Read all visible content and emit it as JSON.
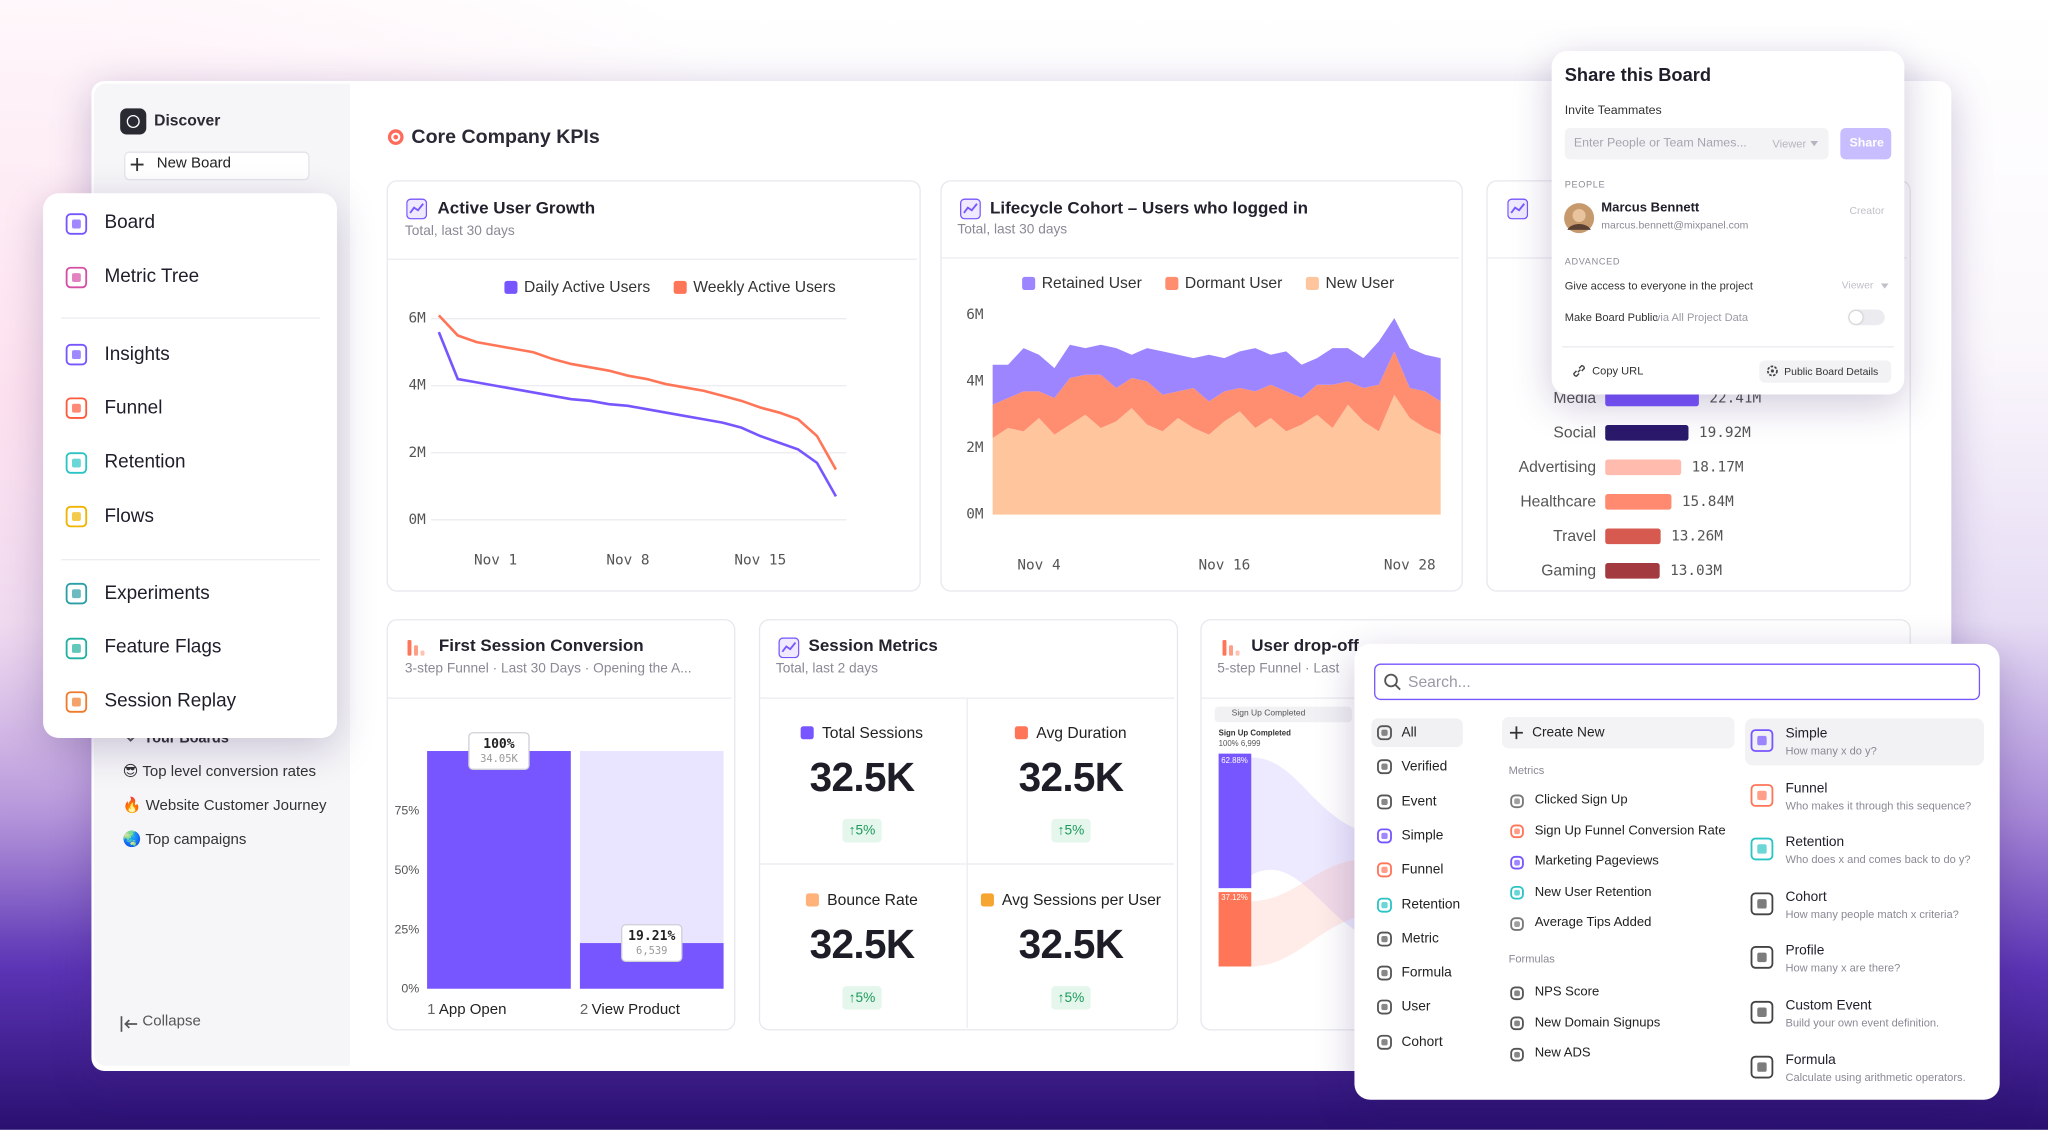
{
  "sidebar": {
    "discover": "Discover",
    "new_board": "New Board",
    "your_boards": "Your Boards",
    "boards": [
      "😎 Top level conversion rates",
      "🔥 Website Customer Journey",
      "🌏 Top campaigns"
    ],
    "collapse": "Collapse"
  },
  "menu": {
    "groups": [
      [
        "Board",
        "Metric Tree"
      ],
      [
        "Insights",
        "Funnel",
        "Retention",
        "Flows"
      ],
      [
        "Experiments",
        "Feature Flags",
        "Session Replay"
      ]
    ]
  },
  "board_title": "Core Company KPIs",
  "chart_data": [
    {
      "type": "line",
      "title": "Active User Growth",
      "subtitle": "Total, last 30 days",
      "categories": [
        null,
        null,
        null,
        "Nov 1",
        null,
        null,
        null,
        null,
        null,
        null,
        "Nov 8",
        null,
        null,
        null,
        null,
        null,
        null,
        "Nov 15",
        null,
        null,
        null,
        null
      ],
      "series": [
        {
          "name": "Daily Active Users",
          "color": "#7856ff",
          "values": [
            5.6,
            4.2,
            4.1,
            4.0,
            3.9,
            3.8,
            3.7,
            3.6,
            3.55,
            3.45,
            3.4,
            3.3,
            3.2,
            3.1,
            3.0,
            2.9,
            2.75,
            2.5,
            2.3,
            2.1,
            1.7,
            0.7
          ]
        },
        {
          "name": "Weekly Active Users",
          "color": "#ff7557",
          "values": [
            6.1,
            5.5,
            5.3,
            5.2,
            5.1,
            5.0,
            4.8,
            4.65,
            4.55,
            4.45,
            4.3,
            4.2,
            4.05,
            3.95,
            3.85,
            3.7,
            3.55,
            3.35,
            3.2,
            3.0,
            2.5,
            1.5
          ]
        }
      ],
      "ylim": [
        0,
        6
      ],
      "yticks": [
        {
          "value": 0,
          "label": "0M"
        },
        {
          "value": 2,
          "label": "2M"
        },
        {
          "value": 4,
          "label": "4M"
        },
        {
          "value": 6,
          "label": "6M"
        }
      ],
      "grid": true
    },
    {
      "type": "area",
      "stacked": true,
      "title": "Lifecycle Cohort – Users who logged in",
      "subtitle": "Total, last 30 days",
      "categories": [
        null,
        null,
        null,
        "Nov 4",
        null,
        null,
        null,
        null,
        null,
        null,
        null,
        null,
        null,
        null,
        null,
        "Nov 16",
        null,
        null,
        null,
        null,
        null,
        null,
        null,
        null,
        null,
        null,
        null,
        "Nov 28",
        null,
        null
      ],
      "series": [
        {
          "name": "Retained User",
          "color": "#9d85ff",
          "values": [
            1.2,
            1.0,
            1.3,
            1.1,
            0.9,
            1.0,
            0.8,
            0.9,
            1.2,
            0.7,
            1.0,
            1.3,
            1.1,
            0.9,
            1.4,
            1.0,
            1.1,
            1.3,
            0.9,
            1.2,
            1.0,
            0.8,
            1.1,
            1.0,
            0.9,
            1.3,
            1.0,
            1.2,
            1.1,
            1.3
          ]
        },
        {
          "name": "Dormant User",
          "color": "#ff8d70",
          "values": [
            1.0,
            0.9,
            1.2,
            0.8,
            1.1,
            1.4,
            1.2,
            1.6,
            1.0,
            0.9,
            1.3,
            1.1,
            0.8,
            1.2,
            1.0,
            0.9,
            0.7,
            1.1,
            1.0,
            1.2,
            0.8,
            0.9,
            1.3,
            0.7,
            1.0,
            1.4,
            1.3,
            0.9,
            1.1,
            1.0
          ]
        },
        {
          "name": "New User",
          "color": "#ffc69e",
          "values": [
            2.3,
            2.6,
            2.5,
            2.9,
            2.4,
            2.7,
            3.0,
            2.6,
            2.8,
            3.2,
            2.7,
            2.5,
            2.9,
            2.6,
            2.4,
            2.8,
            3.1,
            2.6,
            2.9,
            2.5,
            2.7,
            3.0,
            2.6,
            3.3,
            2.8,
            2.5,
            3.6,
            2.9,
            2.6,
            2.4
          ]
        }
      ],
      "ylim": [
        0,
        6
      ],
      "yticks": [
        {
          "value": 0,
          "label": "0M"
        },
        {
          "value": 2,
          "label": "2M"
        },
        {
          "value": 4,
          "label": "4M"
        },
        {
          "value": 6,
          "label": "6M"
        }
      ],
      "grid": false
    },
    {
      "type": "hbar",
      "categories": [
        "Media",
        "Social",
        "Advertising",
        "Healthcare",
        "Travel",
        "Gaming"
      ],
      "values": [
        22.41,
        19.92,
        18.17,
        15.84,
        13.26,
        13.03
      ],
      "value_labels": [
        "22.41M",
        "19.92M",
        "18.17M",
        "15.84M",
        "13.26M",
        "13.03M"
      ],
      "colors": [
        "#7856ff",
        "#2b1a6b",
        "#ffbcae",
        "#ff8a70",
        "#d65a4f",
        "#a23a40"
      ]
    },
    {
      "type": "funnel",
      "title": "First Session Conversion",
      "subtitle": "3-step Funnel · Last 30 Days · Opening the A...",
      "steps": [
        "1",
        "2"
      ],
      "categories": [
        "App Open",
        "View Product"
      ],
      "values": [
        100,
        19.21
      ],
      "value_labels": [
        "100%",
        "19.21%"
      ],
      "counts": [
        "34.05K",
        "6,539"
      ],
      "color": "#7856ff",
      "ylim": [
        0,
        100
      ],
      "yticks": [
        {
          "value": 0,
          "label": "0%"
        },
        {
          "value": 25,
          "label": "25%"
        },
        {
          "value": 50,
          "label": "50%"
        },
        {
          "value": 75,
          "label": "75%"
        }
      ]
    }
  ],
  "session_metrics": {
    "title": "Session Metrics",
    "subtitle": "Total, last 2 days",
    "tiles": [
      {
        "label": "Total Sessions",
        "value": "32.5K",
        "change": "↑5%",
        "color": "#7856ff"
      },
      {
        "label": "Avg Duration",
        "value": "32.5K",
        "change": "↑5%",
        "color": "#ff7557"
      },
      {
        "label": "Bounce Rate",
        "value": "32.5K",
        "change": "↑5%",
        "color": "#ffb27a"
      },
      {
        "label": "Avg Sessions per User",
        "value": "32.5K",
        "change": "↑5%",
        "color": "#f7a531"
      }
    ]
  },
  "drop_off": {
    "title": "User drop-off",
    "subtitle": "5-step Funnel · Last",
    "step_tag": "Sign Up Completed",
    "step_name": "Sign Up Completed",
    "step_stats": "100% 6,999",
    "shares": [
      "62.88%",
      "37.12%"
    ]
  },
  "share": {
    "title": "Share this Board",
    "invite_label": "Invite Teammates",
    "input_placeholder": "Enter People or Team Names...",
    "role": "Viewer",
    "share_button": "Share",
    "people_header": "PEOPLE",
    "person": {
      "name": "Marcus Bennett",
      "email": "marcus.bennett@mixpanel.com",
      "role": "Creator"
    },
    "advanced_header": "ADVANCED",
    "project_access": "Give access to everyone in the project",
    "project_role": "Viewer",
    "public_label": "Make Board Public",
    "public_note": "via All Project Data",
    "copy_url": "Copy URL",
    "public_details": "Public Board Details"
  },
  "search": {
    "placeholder": "Search...",
    "filters": [
      "All",
      "Verified",
      "Event",
      "Simple",
      "Funnel",
      "Retention",
      "Metric",
      "Formula",
      "User",
      "Cohort"
    ],
    "create_new": "Create New",
    "metrics_header": "Metrics",
    "metrics": [
      "Clicked Sign Up",
      "Sign Up Funnel Conversion Rate",
      "Marketing Pageviews",
      "New User Retention",
      "Average Tips Added"
    ],
    "formulas_header": "Formulas",
    "formulas": [
      "NPS Score",
      "New Domain Signups",
      "New ADS"
    ],
    "types": [
      {
        "title": "Simple",
        "description": "How many x do y?"
      },
      {
        "title": "Funnel",
        "description": "Who makes it through this sequence?"
      },
      {
        "title": "Retention",
        "description": "Who does x and comes back to do y?"
      },
      {
        "title": "Cohort",
        "description": "How many people match x criteria?"
      },
      {
        "title": "Profile",
        "description": "How many x are there?"
      },
      {
        "title": "Custom Event",
        "description": "Build your own event definition."
      },
      {
        "title": "Formula",
        "description": "Calculate using arithmetic operators."
      }
    ]
  }
}
